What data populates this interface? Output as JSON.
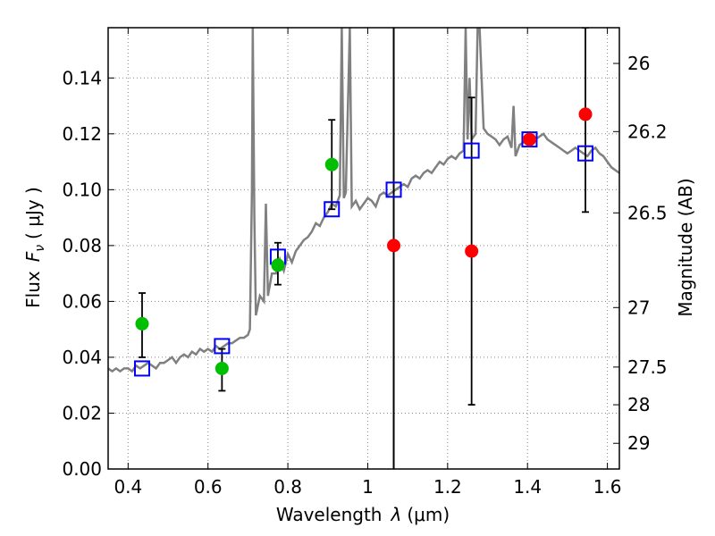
{
  "chart_data": {
    "type": "scatter",
    "xlabel_prefix": "Wavelength",
    "xlabel_symbol": "λ",
    "xlabel_unit": "(μm)",
    "ylabel_prefix": "Flux",
    "ylabel_symbol": "F",
    "ylabel_subscript": "ν",
    "ylabel_unit": "( μJy )",
    "y2label": "Magnitude (AB)",
    "xlim": [
      0.35,
      1.63
    ],
    "ylim": [
      0.0,
      0.158
    ],
    "grid": true,
    "x_ticks": [
      0.4,
      0.6,
      0.8,
      1.0,
      1.2,
      1.4,
      1.6
    ],
    "x_tick_labels": [
      "0.4",
      "0.6",
      "0.8",
      "1",
      "1.2",
      "1.4",
      "1.6"
    ],
    "y_ticks": [
      0.0,
      0.02,
      0.04,
      0.06,
      0.08,
      0.1,
      0.12,
      0.14
    ],
    "y_tick_labels": [
      "0.00",
      "0.02",
      "0.04",
      "0.06",
      "0.08",
      "0.10",
      "0.12",
      "0.14"
    ],
    "y2_ticks": [
      {
        "label": "26",
        "flux": 0.1452
      },
      {
        "label": "26.2",
        "flux": 0.1208
      },
      {
        "label": "26.5",
        "flux": 0.0917
      },
      {
        "label": "27",
        "flux": 0.0578
      },
      {
        "label": "27.5",
        "flux": 0.0365
      },
      {
        "label": "28",
        "flux": 0.023
      },
      {
        "label": "29",
        "flux": 0.0092
      }
    ],
    "vertical_line_x": 1.065,
    "colors": {
      "spectrum": "#808080",
      "model_points": "#0000ff",
      "observed_green": "#00bf00",
      "observed_red": "#ff0000",
      "error_bars": "#000000",
      "grid": "#888888"
    },
    "series": [
      {
        "kind": "spectrum",
        "points": [
          [
            0.35,
            0.036
          ],
          [
            0.36,
            0.035
          ],
          [
            0.37,
            0.036
          ],
          [
            0.38,
            0.035
          ],
          [
            0.39,
            0.036
          ],
          [
            0.4,
            0.036
          ],
          [
            0.41,
            0.035
          ],
          [
            0.42,
            0.037
          ],
          [
            0.43,
            0.036
          ],
          [
            0.44,
            0.037
          ],
          [
            0.45,
            0.038
          ],
          [
            0.46,
            0.037
          ],
          [
            0.47,
            0.036
          ],
          [
            0.48,
            0.038
          ],
          [
            0.49,
            0.038
          ],
          [
            0.5,
            0.039
          ],
          [
            0.51,
            0.04
          ],
          [
            0.52,
            0.038
          ],
          [
            0.53,
            0.04
          ],
          [
            0.54,
            0.041
          ],
          [
            0.55,
            0.04
          ],
          [
            0.56,
            0.042
          ],
          [
            0.57,
            0.041
          ],
          [
            0.58,
            0.043
          ],
          [
            0.59,
            0.042
          ],
          [
            0.6,
            0.043
          ],
          [
            0.61,
            0.042
          ],
          [
            0.62,
            0.044
          ],
          [
            0.63,
            0.043
          ],
          [
            0.64,
            0.044
          ],
          [
            0.65,
            0.045
          ],
          [
            0.66,
            0.045
          ],
          [
            0.67,
            0.046
          ],
          [
            0.68,
            0.047
          ],
          [
            0.69,
            0.047
          ],
          [
            0.7,
            0.048
          ],
          [
            0.705,
            0.05
          ],
          [
            0.71,
            0.1
          ],
          [
            0.712,
            0.158
          ],
          [
            0.716,
            0.09
          ],
          [
            0.72,
            0.055
          ],
          [
            0.73,
            0.062
          ],
          [
            0.74,
            0.06
          ],
          [
            0.745,
            0.095
          ],
          [
            0.75,
            0.062
          ],
          [
            0.76,
            0.07
          ],
          [
            0.77,
            0.07
          ],
          [
            0.78,
            0.075
          ],
          [
            0.79,
            0.071
          ],
          [
            0.8,
            0.077
          ],
          [
            0.81,
            0.074
          ],
          [
            0.82,
            0.078
          ],
          [
            0.83,
            0.08
          ],
          [
            0.84,
            0.082
          ],
          [
            0.85,
            0.083
          ],
          [
            0.86,
            0.085
          ],
          [
            0.87,
            0.088
          ],
          [
            0.88,
            0.087
          ],
          [
            0.89,
            0.09
          ],
          [
            0.9,
            0.092
          ],
          [
            0.91,
            0.095
          ],
          [
            0.92,
            0.094
          ],
          [
            0.93,
            0.098
          ],
          [
            0.935,
            0.158
          ],
          [
            0.94,
            0.097
          ],
          [
            0.945,
            0.099
          ],
          [
            0.955,
            0.158
          ],
          [
            0.96,
            0.094
          ],
          [
            0.97,
            0.096
          ],
          [
            0.98,
            0.093
          ],
          [
            0.99,
            0.095
          ],
          [
            1.0,
            0.097
          ],
          [
            1.01,
            0.096
          ],
          [
            1.02,
            0.094
          ],
          [
            1.03,
            0.098
          ],
          [
            1.04,
            0.099
          ],
          [
            1.05,
            0.098
          ],
          [
            1.06,
            0.099
          ],
          [
            1.07,
            0.1
          ],
          [
            1.08,
            0.101
          ],
          [
            1.09,
            0.102
          ],
          [
            1.1,
            0.101
          ],
          [
            1.11,
            0.104
          ],
          [
            1.12,
            0.105
          ],
          [
            1.13,
            0.104
          ],
          [
            1.14,
            0.106
          ],
          [
            1.15,
            0.107
          ],
          [
            1.16,
            0.106
          ],
          [
            1.17,
            0.108
          ],
          [
            1.18,
            0.11
          ],
          [
            1.19,
            0.109
          ],
          [
            1.2,
            0.111
          ],
          [
            1.21,
            0.112
          ],
          [
            1.22,
            0.111
          ],
          [
            1.23,
            0.113
          ],
          [
            1.24,
            0.114
          ],
          [
            1.245,
            0.158
          ],
          [
            1.25,
            0.118
          ],
          [
            1.255,
            0.14
          ],
          [
            1.26,
            0.118
          ],
          [
            1.27,
            0.12
          ],
          [
            1.275,
            0.158
          ],
          [
            1.28,
            0.158
          ],
          [
            1.29,
            0.122
          ],
          [
            1.3,
            0.12
          ],
          [
            1.31,
            0.119
          ],
          [
            1.32,
            0.118
          ],
          [
            1.33,
            0.116
          ],
          [
            1.34,
            0.118
          ],
          [
            1.35,
            0.119
          ],
          [
            1.36,
            0.115
          ],
          [
            1.365,
            0.13
          ],
          [
            1.37,
            0.112
          ],
          [
            1.38,
            0.116
          ],
          [
            1.39,
            0.117
          ],
          [
            1.4,
            0.118
          ],
          [
            1.41,
            0.116
          ],
          [
            1.42,
            0.118
          ],
          [
            1.43,
            0.119
          ],
          [
            1.44,
            0.12
          ],
          [
            1.45,
            0.118
          ],
          [
            1.46,
            0.117
          ],
          [
            1.47,
            0.116
          ],
          [
            1.48,
            0.115
          ],
          [
            1.49,
            0.114
          ],
          [
            1.5,
            0.113
          ],
          [
            1.51,
            0.114
          ],
          [
            1.52,
            0.115
          ],
          [
            1.53,
            0.114
          ],
          [
            1.54,
            0.113
          ],
          [
            1.55,
            0.112
          ],
          [
            1.56,
            0.114
          ],
          [
            1.57,
            0.115
          ],
          [
            1.58,
            0.113
          ],
          [
            1.59,
            0.112
          ],
          [
            1.6,
            0.11
          ],
          [
            1.61,
            0.108
          ],
          [
            1.62,
            0.107
          ],
          [
            1.63,
            0.106
          ]
        ]
      },
      {
        "kind": "model_squares",
        "points": [
          [
            0.435,
            0.036
          ],
          [
            0.635,
            0.044
          ],
          [
            0.775,
            0.076
          ],
          [
            0.91,
            0.093
          ],
          [
            1.065,
            0.1
          ],
          [
            1.26,
            0.114
          ],
          [
            1.405,
            0.118
          ],
          [
            1.545,
            0.113
          ]
        ]
      },
      {
        "kind": "observed_green",
        "points": [
          {
            "x": 0.435,
            "y": 0.052,
            "ylo": 0.04,
            "yhi": 0.063
          },
          {
            "x": 0.635,
            "y": 0.036,
            "ylo": 0.028,
            "yhi": 0.043
          },
          {
            "x": 0.775,
            "y": 0.073,
            "ylo": 0.066,
            "yhi": 0.081
          },
          {
            "x": 0.91,
            "y": 0.109,
            "ylo": 0.093,
            "yhi": 0.125
          }
        ]
      },
      {
        "kind": "observed_red",
        "points": [
          {
            "x": 1.065,
            "y": 0.08
          },
          {
            "x": 1.26,
            "y": 0.078,
            "ylo": 0.023,
            "yhi": 0.133
          },
          {
            "x": 1.405,
            "y": 0.118
          },
          {
            "x": 1.545,
            "y": 0.127,
            "ylo": 0.092,
            "yhi": 0.158
          }
        ]
      }
    ]
  }
}
